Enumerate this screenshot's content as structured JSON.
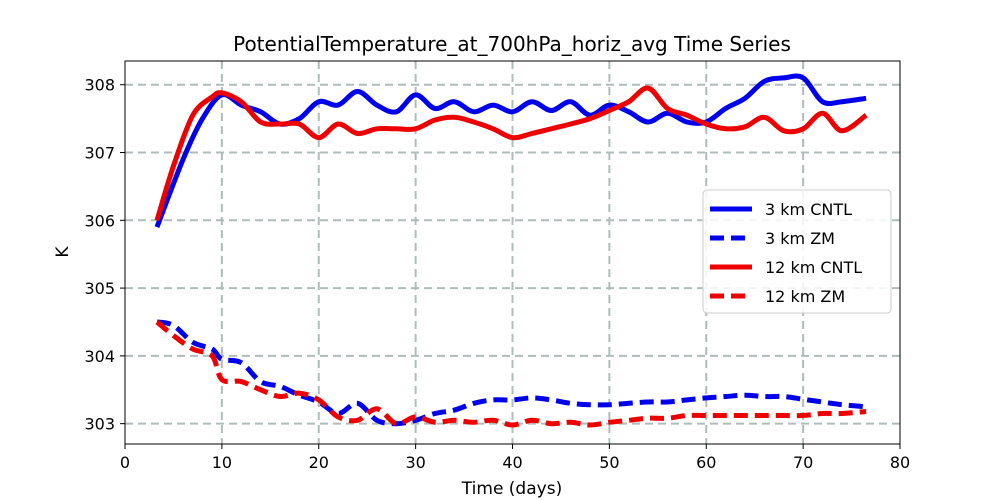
{
  "chart_data": {
    "type": "line",
    "title": "PotentialTemperature_at_700hPa_horiz_avg Time Series",
    "xlabel": "Time (days)",
    "ylabel": "K",
    "xlim": [
      0,
      80
    ],
    "ylim": [
      302.7,
      308.35
    ],
    "xticks": [
      0,
      10,
      20,
      30,
      40,
      50,
      60,
      70,
      80
    ],
    "yticks": [
      303,
      304,
      305,
      306,
      307,
      308
    ],
    "grid": true,
    "legend_position": "center-right",
    "series": [
      {
        "name": "3 km CNTL",
        "color": "#0000ee",
        "style": "solid",
        "x": [
          3.3,
          6,
          8,
          10,
          12,
          14,
          16,
          18,
          20,
          22,
          24,
          26,
          28,
          30,
          32,
          34,
          36,
          38,
          40,
          42,
          44,
          46,
          48,
          50,
          52,
          54,
          56,
          58,
          60,
          62,
          64,
          66,
          68,
          70,
          72,
          74,
          76.5
        ],
        "y": [
          305.9,
          306.9,
          307.5,
          307.85,
          307.7,
          307.6,
          307.42,
          307.5,
          307.75,
          307.7,
          307.9,
          307.7,
          307.6,
          307.85,
          307.65,
          307.75,
          307.6,
          307.7,
          307.6,
          307.75,
          307.62,
          307.75,
          307.55,
          307.7,
          307.6,
          307.45,
          307.58,
          307.45,
          307.45,
          307.65,
          307.8,
          308.05,
          308.1,
          308.1,
          307.75,
          307.75,
          307.8
        ]
      },
      {
        "name": "3 km ZM",
        "color": "#0000ee",
        "style": "dashed",
        "x": [
          3.3,
          5,
          7,
          9,
          10,
          12,
          14,
          16,
          18,
          20,
          22,
          24,
          26,
          28,
          30,
          32,
          34,
          36,
          38,
          40,
          42,
          44,
          46,
          48,
          50,
          52,
          54,
          56,
          58,
          60,
          62,
          64,
          66,
          68,
          70,
          72,
          74,
          76.5
        ],
        "y": [
          304.5,
          304.45,
          304.2,
          304.1,
          303.95,
          303.9,
          303.62,
          303.55,
          303.42,
          303.32,
          303.15,
          303.3,
          303.05,
          303.0,
          303.05,
          303.15,
          303.2,
          303.3,
          303.35,
          303.35,
          303.38,
          303.35,
          303.3,
          303.28,
          303.28,
          303.3,
          303.32,
          303.32,
          303.35,
          303.38,
          303.4,
          303.42,
          303.4,
          303.4,
          303.36,
          303.32,
          303.28,
          303.25
        ]
      },
      {
        "name": "12 km CNTL",
        "color": "#ee0000",
        "style": "solid",
        "x": [
          3.3,
          5,
          7,
          9,
          10,
          12,
          14,
          16,
          18,
          20,
          22,
          24,
          26,
          28,
          30,
          32,
          34,
          36,
          38,
          40,
          42,
          44,
          46,
          48,
          50,
          52,
          54,
          56,
          58,
          60,
          62,
          64,
          66,
          68,
          70,
          72,
          74,
          76.5
        ],
        "y": [
          306.0,
          306.8,
          307.55,
          307.82,
          307.88,
          307.75,
          307.45,
          307.42,
          307.42,
          307.22,
          307.42,
          307.28,
          307.35,
          307.35,
          307.35,
          307.48,
          307.52,
          307.45,
          307.35,
          307.22,
          307.28,
          307.35,
          307.42,
          307.5,
          307.62,
          307.75,
          307.95,
          307.65,
          307.55,
          307.42,
          307.35,
          307.38,
          307.52,
          307.32,
          307.35,
          307.58,
          307.32,
          307.55
        ]
      },
      {
        "name": "12 km ZM",
        "color": "#ee0000",
        "style": "dashed",
        "x": [
          3.3,
          5,
          7,
          9,
          10,
          12,
          14,
          16,
          18,
          20,
          22,
          24,
          26,
          28,
          30,
          32,
          34,
          36,
          38,
          40,
          42,
          44,
          46,
          48,
          50,
          52,
          54,
          56,
          58,
          60,
          62,
          64,
          66,
          68,
          70,
          72,
          74,
          76.5
        ],
        "y": [
          304.5,
          304.3,
          304.1,
          304.0,
          303.65,
          303.62,
          303.5,
          303.4,
          303.45,
          303.35,
          303.1,
          303.05,
          303.22,
          303.0,
          303.1,
          303.02,
          303.05,
          303.02,
          303.05,
          302.98,
          303.05,
          303.0,
          303.02,
          302.98,
          303.02,
          303.05,
          303.08,
          303.08,
          303.12,
          303.12,
          303.12,
          303.12,
          303.12,
          303.12,
          303.12,
          303.15,
          303.15,
          303.18
        ]
      }
    ]
  }
}
